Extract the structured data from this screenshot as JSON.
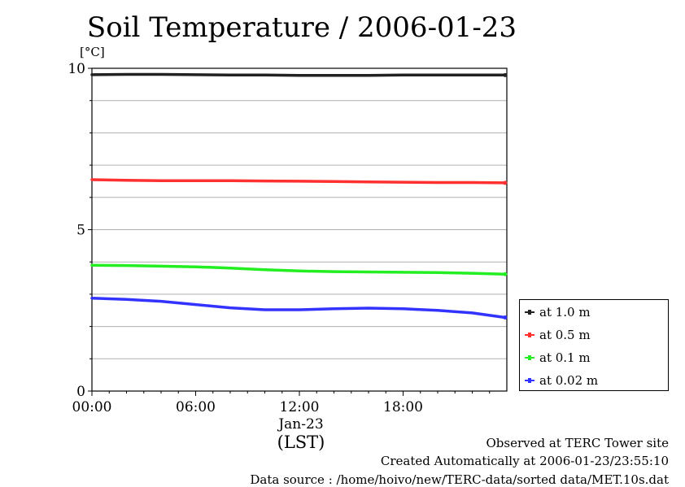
{
  "chart_data": {
    "type": "line",
    "title": "Soil Temperature / 2006-01-23",
    "ylabel": "[°C]",
    "ylim": [
      0,
      10
    ],
    "yticks": [
      "0",
      "5",
      "10"
    ],
    "xlim": [
      "00:00",
      "24:00"
    ],
    "xticks": [
      "00:00",
      "06:00",
      "12:00",
      "18:00"
    ],
    "x_date_label": "Jan-23",
    "x_unit_label": "(LST)",
    "grid": true,
    "legend_position": "right",
    "series": [
      {
        "name": "at 1.0 m",
        "color": "#222222",
        "x": [
          0,
          2,
          4,
          6,
          8,
          10,
          12,
          14,
          16,
          18,
          20,
          22,
          23.9
        ],
        "values": [
          9.8,
          9.81,
          9.81,
          9.8,
          9.79,
          9.79,
          9.78,
          9.78,
          9.78,
          9.79,
          9.79,
          9.79,
          9.79
        ]
      },
      {
        "name": "at 0.5 m",
        "color": "#ff3030",
        "x": [
          0,
          2,
          4,
          6,
          8,
          10,
          12,
          14,
          16,
          18,
          20,
          22,
          23.9
        ],
        "values": [
          6.55,
          6.53,
          6.52,
          6.52,
          6.52,
          6.51,
          6.5,
          6.49,
          6.48,
          6.47,
          6.46,
          6.46,
          6.45
        ]
      },
      {
        "name": "at 0.1 m",
        "color": "#22ee22",
        "x": [
          0,
          2,
          4,
          6,
          8,
          10,
          12,
          14,
          16,
          18,
          20,
          22,
          23.9
        ],
        "values": [
          3.9,
          3.89,
          3.87,
          3.85,
          3.81,
          3.76,
          3.72,
          3.7,
          3.69,
          3.68,
          3.67,
          3.65,
          3.62
        ]
      },
      {
        "name": "at 0.02 m",
        "color": "#3333ff",
        "x": [
          0,
          2,
          4,
          6,
          8,
          10,
          12,
          14,
          16,
          18,
          20,
          22,
          23.9
        ],
        "values": [
          2.88,
          2.84,
          2.78,
          2.68,
          2.58,
          2.52,
          2.52,
          2.55,
          2.57,
          2.55,
          2.5,
          2.42,
          2.28
        ]
      }
    ]
  },
  "footer": {
    "site": "Observed at TERC Tower site",
    "created": "Created Automatically at 2006-01-23/23:55:10",
    "source": "Data source : /home/hoivo/new/TERC-data/sorted  data/MET.10s.dat"
  }
}
